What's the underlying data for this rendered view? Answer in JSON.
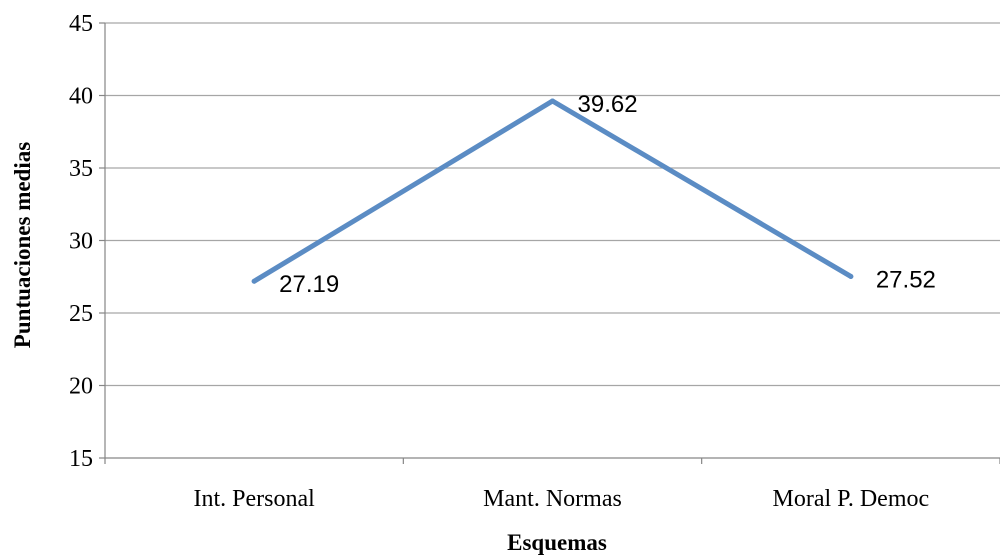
{
  "chart_data": {
    "type": "line",
    "categories": [
      "Int. Personal",
      "Mant. Normas",
      "Moral P. Democ"
    ],
    "series": [
      {
        "values": [
          27.19,
          39.62,
          27.52
        ],
        "data_labels": [
          "27.19",
          "39.62",
          "27.52"
        ]
      }
    ],
    "xlabel": "Esquemas",
    "ylabel": "Puntuaciones medias",
    "ylim": [
      15,
      45
    ],
    "yticks": [
      15,
      20,
      25,
      30,
      35,
      40,
      45
    ],
    "grid": true,
    "legend": "none",
    "line_color": "#5b8cc4",
    "grid_color": "#a6a6a6"
  }
}
